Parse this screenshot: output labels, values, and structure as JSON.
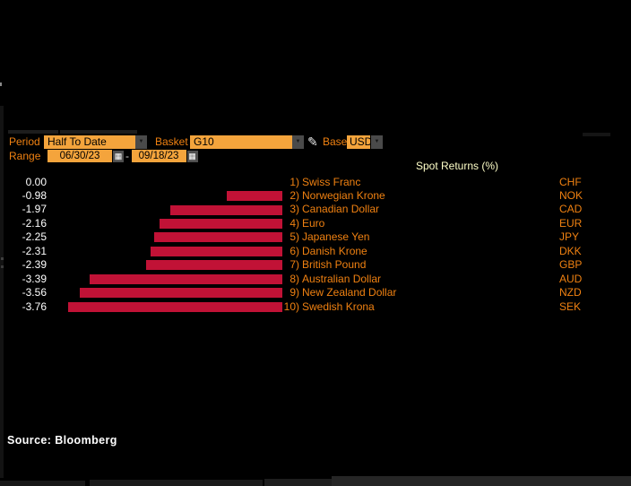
{
  "toolbar": {
    "period_label": "Period",
    "period_value": "Half To Date",
    "basket_label": "Basket",
    "basket_value": "G10",
    "base_label": "Base",
    "base_value": "USD",
    "range_label": "Range",
    "range_start": "06/30/23",
    "range_separator": "-",
    "range_end": "09/18/23"
  },
  "icons": {
    "pencil": "✎",
    "dropdown_arrow": "▼",
    "calendar": "▦"
  },
  "chart_data": {
    "type": "bar",
    "orientation": "horizontal",
    "title": "Spot Returns (%)",
    "categories": [
      "Swiss Franc",
      "Norwegian Krone",
      "Canadian Dollar",
      "Euro",
      "Japanese Yen",
      "Danish Krone",
      "British Pound",
      "Australian Dollar",
      "New Zealand Dollar",
      "Swedish Krona"
    ],
    "ranks": [
      "1)",
      "2)",
      "3)",
      "4)",
      "5)",
      "6)",
      "7)",
      "8)",
      "9)",
      "10)"
    ],
    "codes": [
      "CHF",
      "NOK",
      "CAD",
      "EUR",
      "JPY",
      "DKK",
      "GBP",
      "AUD",
      "NZD",
      "SEK"
    ],
    "values": [
      0.0,
      -0.98,
      -1.97,
      -2.16,
      -2.25,
      -2.31,
      -2.39,
      -3.39,
      -3.56,
      -3.76
    ],
    "value_labels": [
      "0.00",
      "-0.98",
      "-1.97",
      "-2.16",
      "-2.25",
      "-2.31",
      "-2.39",
      "-3.39",
      "-3.56",
      "-3.76"
    ],
    "xlim": [
      -3.96,
      0
    ],
    "bar_color": "#c11236",
    "legend": "none",
    "grid": "off",
    "value_axis_side": "left"
  },
  "footer": {
    "source": "Source: Bloomberg"
  },
  "colors": {
    "background": "#000000",
    "accent_orange": "#f08111",
    "field_amber": "#f4a43c",
    "bar_red": "#c11236",
    "title_yellow": "#ffffc8",
    "value_white": "#ffffff"
  }
}
